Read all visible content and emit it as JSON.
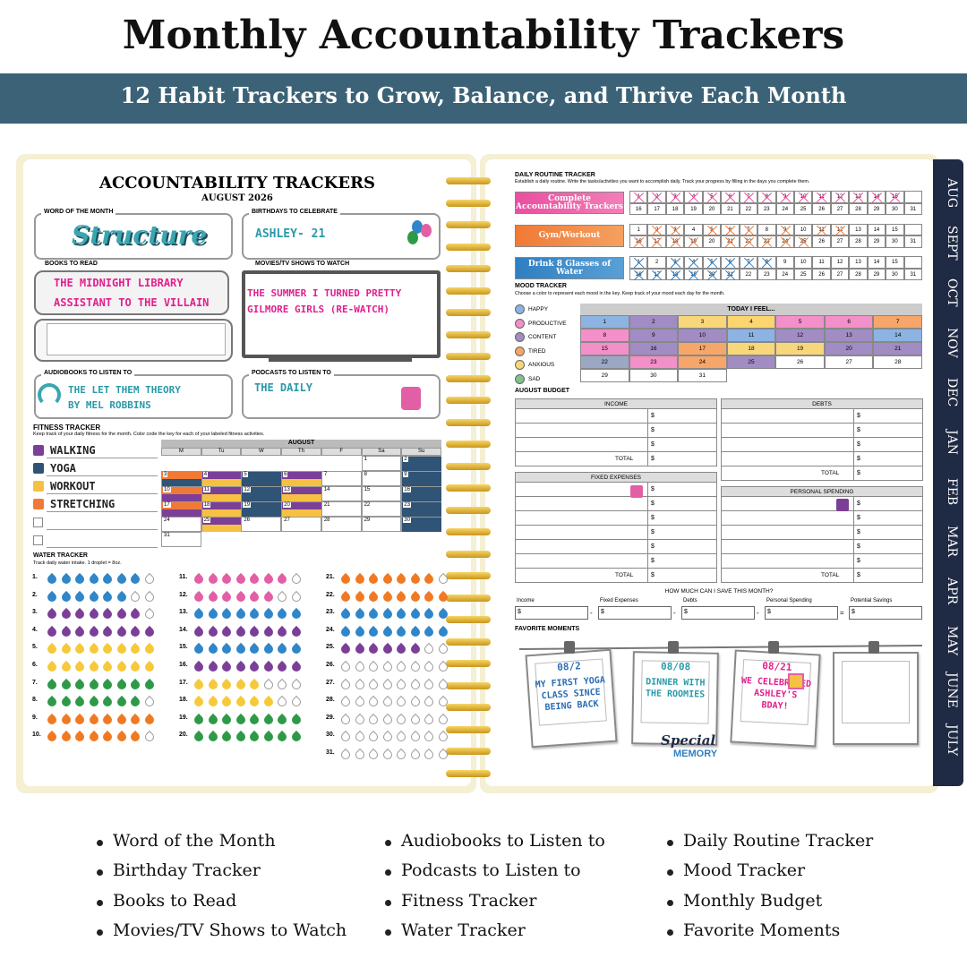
{
  "header": {
    "title": "Monthly Accountability Trackers",
    "subtitle": "12 Habit Trackers to Grow, Balance, and Thrive Each Month"
  },
  "left_page": {
    "title": "ACCOUNTABILITY TRACKERS",
    "date": "AUGUST 2026",
    "word_of_the_month": {
      "label": "WORD OF THE MONTH",
      "value": "Structure"
    },
    "birthdays": {
      "label": "BIRTHDAYS TO CELEBRATE",
      "items": [
        "ASHLEY- 21"
      ]
    },
    "books": {
      "label": "BOOKS TO READ",
      "items": [
        "THE MIDNIGHT LIBRARY",
        "ASSISTANT TO THE VILLAIN"
      ]
    },
    "movies": {
      "label": "MOVIES/TV SHOWS TO WATCH",
      "items": [
        "THE SUMMER I TURNED PRETTY",
        "GILMORE GIRLS (RE-WATCH)"
      ]
    },
    "audiobooks": {
      "label": "AUDIOBOOKS TO LISTEN TO",
      "items": [
        "THE LET THEM THEORY",
        "BY MEL ROBBINS"
      ]
    },
    "podcasts": {
      "label": "PODCASTS TO LISTEN TO",
      "items": [
        "THE DAILY"
      ]
    },
    "fitness": {
      "title": "FITNESS TRACKER",
      "instructions": "Keep track of your daily fitness for the month. Color code the key for each of your labeled fitness activities.",
      "activities": [
        {
          "name": "WALKING",
          "color": "#7b3f98"
        },
        {
          "name": "YOGA",
          "color": "#2f5475"
        },
        {
          "name": "WORKOUT",
          "color": "#f6c142"
        },
        {
          "name": "STRETCHING",
          "color": "#f07a35"
        }
      ],
      "month": "AUGUST",
      "weekdays": [
        "M",
        "Tu",
        "W",
        "Th",
        "F",
        "Sa",
        "Su"
      ],
      "days": [
        1,
        2,
        3,
        4,
        5,
        6,
        7,
        8,
        9,
        10,
        11,
        12,
        13,
        14,
        15,
        16,
        17,
        18,
        19,
        20,
        21,
        22,
        23,
        24,
        25,
        26,
        27,
        28,
        29,
        30,
        31
      ]
    },
    "water": {
      "title": "WATER TRACKER",
      "instructions": "Track daily water intake. 1 droplet = 8oz.",
      "rows": [
        "1.",
        "2.",
        "3.",
        "4.",
        "5.",
        "6.",
        "7.",
        "8.",
        "9.",
        "10.",
        "11.",
        "12.",
        "13.",
        "14.",
        "15.",
        "16.",
        "17.",
        "18.",
        "19.",
        "20.",
        "21.",
        "22.",
        "23.",
        "24.",
        "25.",
        "26.",
        "27.",
        "28.",
        "29.",
        "30.",
        "31."
      ],
      "filled": [
        7,
        6,
        7,
        8,
        8,
        8,
        8,
        7,
        8,
        7,
        7,
        6,
        8,
        8,
        8,
        8,
        5,
        6,
        8,
        8,
        7,
        8,
        8,
        8,
        6,
        0,
        0,
        0,
        0,
        0,
        0
      ],
      "colors": [
        "#2f86c8",
        "#2f86c8",
        "#7b3f98",
        "#7b3f98",
        "#f6c93a",
        "#f6c93a",
        "#2e9a48",
        "#2e9a48",
        "#f07a22",
        "#f07a22",
        "#e25fa6",
        "#e25fa6",
        "#2f86c8",
        "#7b3f98",
        "#2f86c8",
        "#7b3f98",
        "#f6c93a",
        "#f6c93a",
        "#2e9a48",
        "#2e9a48",
        "#f07a22",
        "#f07a22",
        "#2f86c8",
        "#2f86c8",
        "#7b3f98",
        "#ffffff",
        "#ffffff",
        "#ffffff",
        "#ffffff",
        "#ffffff",
        "#ffffff"
      ]
    }
  },
  "right_page": {
    "routine": {
      "title": "DAILY ROUTINE TRACKER",
      "instructions": "Establish a daily routine. Write the tasks/activities you want to accomplish daily. Track your progress by filling in the days you complete them.",
      "tasks": [
        "Complete Accountability Trackers",
        "Gym/Workout",
        "Drink 8 Glasses of Water"
      ],
      "days": [
        1,
        2,
        3,
        4,
        5,
        6,
        7,
        8,
        9,
        10,
        11,
        12,
        13,
        14,
        15,
        16,
        17,
        18,
        19,
        20,
        21,
        22,
        23,
        24,
        25,
        26,
        27,
        28,
        29,
        30,
        31
      ]
    },
    "mood": {
      "title": "MOOD TRACKER",
      "instructions": "Choose a color to represent each mood in the key. Keep track of your mood each day for the month.",
      "header": "TODAY I FEEL...",
      "moods": [
        {
          "name": "HAPPY",
          "color": "#8db3e2"
        },
        {
          "name": "PRODUCTIVE",
          "color": "#f38fc9"
        },
        {
          "name": "CONTENT",
          "color": "#a18cc4"
        },
        {
          "name": "TIRED",
          "color": "#f6a66a"
        },
        {
          "name": "ANXIOUS",
          "color": "#f8d77b"
        },
        {
          "name": "SAD",
          "color": "#7fc38a"
        }
      ]
    },
    "budget": {
      "title": "AUGUST BUDGET",
      "sections": [
        "INCOME",
        "DEBTS",
        "FIXED EXPENSES",
        "PERSONAL SPENDING"
      ],
      "total": "TOTAL",
      "currency": "$"
    },
    "savings": {
      "question": "HOW MUCH CAN I SAVE THIS MONTH?",
      "fields": [
        "Income",
        "Fixed Expenses",
        "Debts",
        "Personal Spending",
        "Potential Savings"
      ],
      "operators": [
        "-",
        "-",
        "-",
        "="
      ]
    },
    "favorite_moments": {
      "title": "FAVORITE MOMENTS",
      "cards": [
        {
          "date": "08/2",
          "text": "MY FIRST YOGA CLASS SINCE BEING BACK"
        },
        {
          "date": "08/08",
          "text": "DINNER WITH THE ROOMIES"
        },
        {
          "date": "08/21",
          "text": "WE CELEBRATED ASHLEY'S BDAY!"
        }
      ],
      "sticker": [
        "Special",
        "MEMORY"
      ]
    }
  },
  "tabs": [
    "AUG",
    "SEPT",
    "OCT",
    "NOV",
    "DEC",
    "JAN",
    "FEB",
    "MAR",
    "APR",
    "MAY",
    "JUNE",
    "JULY"
  ],
  "features": [
    "Word of the Month",
    "Birthday Tracker",
    "Books to Read",
    "Movies/TV Shows to Watch",
    "Audiobooks to Listen to",
    "Podcasts to Listen to",
    "Fitness Tracker",
    "Water Tracker",
    "Daily Routine Tracker",
    "Mood  Tracker",
    "Monthly Budget",
    "Favorite Moments"
  ]
}
